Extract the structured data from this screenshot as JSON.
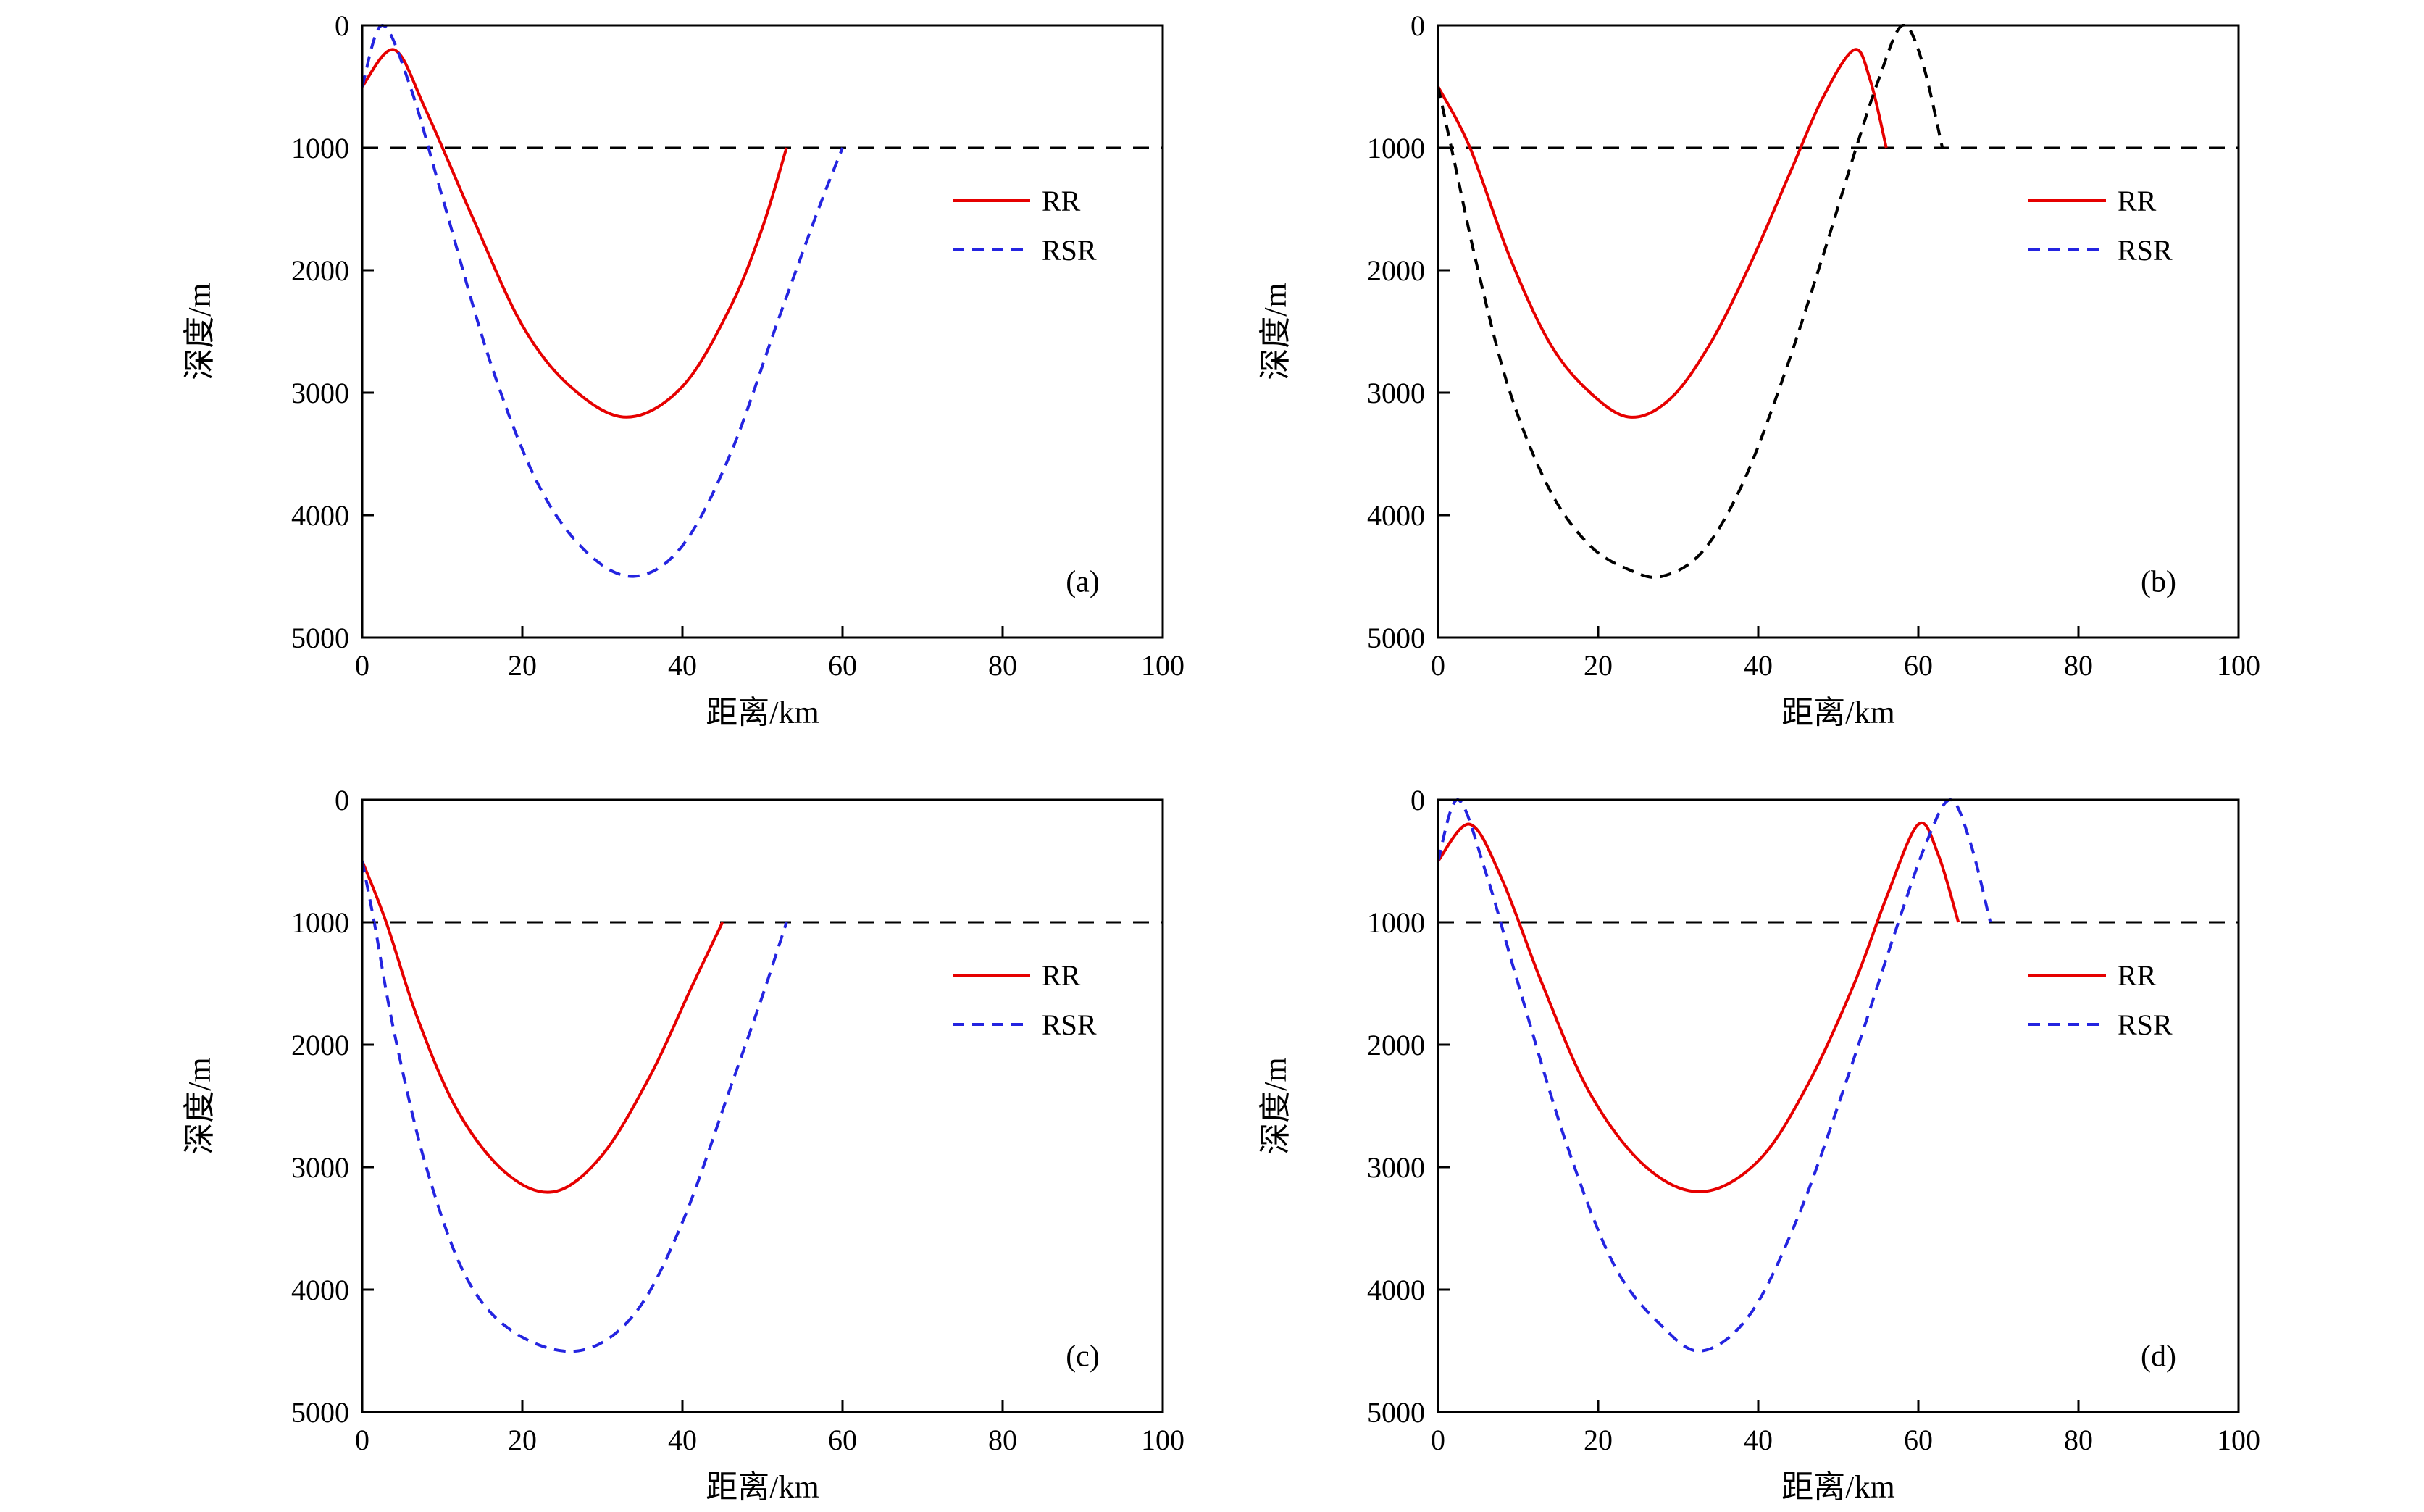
{
  "style": {
    "background": "#ffffff",
    "axis_color": "#000000",
    "rr_color": "#e60000",
    "rsr_color": "#2424e0",
    "reference_color": "#000000"
  },
  "chart_data": [
    {
      "type": "line",
      "panel_label": "(a)",
      "xlabel": "距离/km",
      "ylabel": "深度/m",
      "xlim": [
        0,
        100
      ],
      "ylim": [
        0,
        5000
      ],
      "y_axis_inverted": true,
      "x_ticks": [
        0,
        20,
        40,
        60,
        80,
        100
      ],
      "y_ticks": [
        0,
        1000,
        2000,
        3000,
        4000,
        5000
      ],
      "reference_line": {
        "depth": 1000,
        "style": "dashed",
        "color": "reference_color"
      },
      "legend": [
        {
          "label": "RR",
          "line": "solid",
          "color": "rr_color"
        },
        {
          "label": "RSR",
          "line": "dashed",
          "color": "rsr_color"
        }
      ],
      "series": [
        {
          "name": "RR",
          "line": "solid",
          "color": "rr_color",
          "points": [
            [
              0,
              500
            ],
            [
              4,
              200
            ],
            [
              8,
              700
            ],
            [
              14,
              1600
            ],
            [
              20,
              2450
            ],
            [
              26,
              2950
            ],
            [
              33,
              3200
            ],
            [
              40,
              2950
            ],
            [
              46,
              2300
            ],
            [
              50,
              1650
            ],
            [
              53,
              1000
            ]
          ]
        },
        {
          "name": "RSR",
          "line": "dashed",
          "color": "rsr_color",
          "points": [
            [
              0,
              500
            ],
            [
              2.5,
              0
            ],
            [
              6,
              500
            ],
            [
              10,
              1400
            ],
            [
              16,
              2750
            ],
            [
              22,
              3750
            ],
            [
              28,
              4300
            ],
            [
              34,
              4500
            ],
            [
              40,
              4250
            ],
            [
              46,
              3500
            ],
            [
              52,
              2400
            ],
            [
              57,
              1500
            ],
            [
              60,
              1000
            ]
          ]
        }
      ]
    },
    {
      "type": "line",
      "panel_label": "(b)",
      "xlabel": "距离/km",
      "ylabel": "深度/m",
      "xlim": [
        0,
        100
      ],
      "ylim": [
        0,
        5000
      ],
      "y_axis_inverted": true,
      "x_ticks": [
        0,
        20,
        40,
        60,
        80,
        100
      ],
      "y_ticks": [
        0,
        1000,
        2000,
        3000,
        4000,
        5000
      ],
      "reference_line": {
        "depth": 1000,
        "style": "dashed",
        "color": "reference_color"
      },
      "legend": [
        {
          "label": "RR",
          "line": "solid",
          "color": "rr_color"
        },
        {
          "label": "RSR",
          "line": "dashed",
          "color": "rsr_color"
        }
      ],
      "series": [
        {
          "name": "RR",
          "line": "solid",
          "color": "rr_color",
          "points": [
            [
              0,
              500
            ],
            [
              4,
              1000
            ],
            [
              9,
              1900
            ],
            [
              14,
              2600
            ],
            [
              19,
              3000
            ],
            [
              24,
              3200
            ],
            [
              29,
              3050
            ],
            [
              34,
              2600
            ],
            [
              39,
              1950
            ],
            [
              44,
              1200
            ],
            [
              48,
              600
            ],
            [
              52,
              200
            ],
            [
              54,
              450
            ],
            [
              56,
              1000
            ]
          ]
        },
        {
          "name": "RSR",
          "line": "dashed",
          "color": "rssr_color",
          "points": [
            [
              0,
              500
            ],
            [
              2,
              1100
            ],
            [
              5,
              2000
            ],
            [
              9,
              3000
            ],
            [
              14,
              3800
            ],
            [
              19,
              4250
            ],
            [
              24,
              4450
            ],
            [
              28,
              4500
            ],
            [
              33,
              4300
            ],
            [
              38,
              3750
            ],
            [
              43,
              2900
            ],
            [
              48,
              1900
            ],
            [
              52,
              1050
            ],
            [
              55,
              450
            ],
            [
              58,
              0
            ],
            [
              60.5,
              300
            ],
            [
              63,
              1000
            ]
          ]
        }
      ]
    },
    {
      "type": "line",
      "panel_label": "(c)",
      "xlabel": "距离/km",
      "ylabel": "深度/m",
      "xlim": [
        0,
        100
      ],
      "ylim": [
        0,
        5000
      ],
      "y_axis_inverted": true,
      "x_ticks": [
        0,
        20,
        40,
        60,
        80,
        100
      ],
      "y_ticks": [
        0,
        1000,
        2000,
        3000,
        4000,
        5000
      ],
      "reference_line": {
        "depth": 1000,
        "style": "dashed",
        "color": "reference_color"
      },
      "legend": [
        {
          "label": "RR",
          "line": "solid",
          "color": "rr_color"
        },
        {
          "label": "RSR",
          "line": "dashed",
          "color": "rsr_color"
        }
      ],
      "series": [
        {
          "name": "RR",
          "line": "solid",
          "color": "rr_color",
          "points": [
            [
              0,
              500
            ],
            [
              3,
              1000
            ],
            [
              7,
              1800
            ],
            [
              12,
              2550
            ],
            [
              18,
              3050
            ],
            [
              24,
              3200
            ],
            [
              30,
              2900
            ],
            [
              36,
              2250
            ],
            [
              41,
              1550
            ],
            [
              45,
              1000
            ]
          ]
        },
        {
          "name": "RSR",
          "line": "dashed",
          "color": "rsr_color",
          "points": [
            [
              0,
              500
            ],
            [
              1.5,
              1000
            ],
            [
              4,
              1900
            ],
            [
              8,
              3000
            ],
            [
              13,
              3900
            ],
            [
              19,
              4350
            ],
            [
              27,
              4500
            ],
            [
              34,
              4200
            ],
            [
              40,
              3450
            ],
            [
              46,
              2350
            ],
            [
              50,
              1600
            ],
            [
              53,
              1000
            ]
          ]
        }
      ]
    },
    {
      "type": "line",
      "panel_label": "(d)",
      "xlabel": "距离/km",
      "ylabel": "深度/m",
      "xlim": [
        0,
        100
      ],
      "ylim": [
        0,
        5000
      ],
      "y_axis_inverted": true,
      "x_ticks": [
        0,
        20,
        40,
        60,
        80,
        100
      ],
      "y_ticks": [
        0,
        1000,
        2000,
        3000,
        4000,
        5000
      ],
      "reference_line": {
        "depth": 1000,
        "style": "dashed",
        "color": "reference_color"
      },
      "legend": [
        {
          "label": "RR",
          "line": "solid",
          "color": "rr_color"
        },
        {
          "label": "RSR",
          "line": "dashed",
          "color": "rsr_color"
        }
      ],
      "series": [
        {
          "name": "RR",
          "line": "solid",
          "color": "rr_color",
          "points": [
            [
              0,
              500
            ],
            [
              4,
              200
            ],
            [
              8,
              650
            ],
            [
              13,
              1500
            ],
            [
              19,
              2400
            ],
            [
              26,
              3000
            ],
            [
              33,
              3200
            ],
            [
              40,
              2950
            ],
            [
              46,
              2350
            ],
            [
              52,
              1500
            ],
            [
              56,
              800
            ],
            [
              60,
              200
            ],
            [
              62.5,
              450
            ],
            [
              65,
              1000
            ]
          ]
        },
        {
          "name": "RSR",
          "line": "dashed",
          "color": "rsr_color",
          "points": [
            [
              0,
              500
            ],
            [
              2.5,
              0
            ],
            [
              6,
              600
            ],
            [
              10,
              1500
            ],
            [
              16,
              2800
            ],
            [
              22,
              3800
            ],
            [
              28,
              4300
            ],
            [
              33,
              4500
            ],
            [
              39,
              4200
            ],
            [
              45,
              3400
            ],
            [
              51,
              2300
            ],
            [
              57,
              1100
            ],
            [
              61,
              350
            ],
            [
              64,
              0
            ],
            [
              66.5,
              350
            ],
            [
              69,
              1000
            ]
          ]
        }
      ]
    }
  ]
}
